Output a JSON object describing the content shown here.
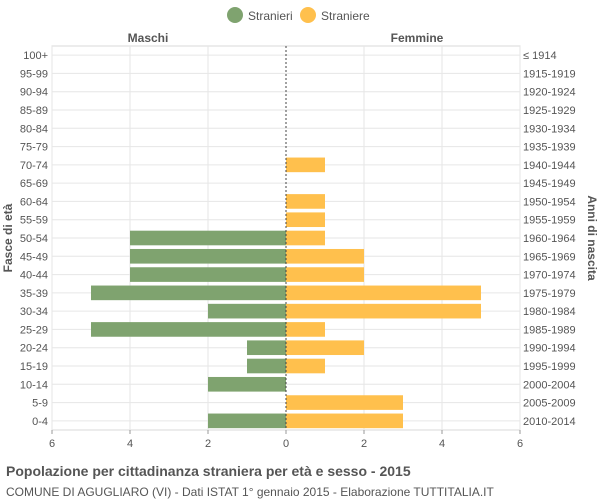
{
  "chart_data": {
    "type": "bar",
    "orientation": "horizontal-population-pyramid",
    "title": "Popolazione per cittadinanza straniera per età e sesso - 2015",
    "subtitle": "COMUNE DI AGUGLIARO (VI) - Dati ISTAT 1° gennaio 2015 - Elaborazione TUTTITALIA.IT",
    "ylabel_left": "Fasce di età",
    "ylabel_right": "Anni di nascita",
    "side_left_label": "Maschi",
    "side_right_label": "Femmine",
    "xlim": [
      -6,
      6
    ],
    "x_ticks": [
      -6,
      -4,
      -2,
      0,
      2,
      4,
      6
    ],
    "x_tick_labels": [
      "6",
      "4",
      "2",
      "0",
      "2",
      "4",
      "6"
    ],
    "grid": true,
    "legend_position": "top-center",
    "categories": [
      "100+",
      "95-99",
      "90-94",
      "85-89",
      "80-84",
      "75-79",
      "70-74",
      "65-69",
      "60-64",
      "55-59",
      "50-54",
      "45-49",
      "40-44",
      "35-39",
      "30-34",
      "25-29",
      "20-24",
      "15-19",
      "10-14",
      "5-9",
      "0-4"
    ],
    "birth_years": [
      "≤ 1914",
      "1915-1919",
      "1920-1924",
      "1925-1929",
      "1930-1934",
      "1935-1939",
      "1940-1944",
      "1945-1949",
      "1950-1954",
      "1955-1959",
      "1960-1964",
      "1965-1969",
      "1970-1974",
      "1975-1979",
      "1980-1984",
      "1985-1989",
      "1990-1994",
      "1995-1999",
      "2000-2004",
      "2005-2009",
      "2010-2014"
    ],
    "series": [
      {
        "name": "Stranieri",
        "side": "left",
        "color": "#7fa36f",
        "values": [
          0,
          0,
          0,
          0,
          0,
          0,
          0,
          0,
          0,
          0,
          4,
          4,
          4,
          5,
          2,
          5,
          1,
          1,
          2,
          0,
          2
        ]
      },
      {
        "name": "Straniere",
        "side": "right",
        "color": "#ffc04d",
        "values": [
          0,
          0,
          0,
          0,
          0,
          0,
          1,
          0,
          1,
          1,
          1,
          2,
          2,
          5,
          5,
          1,
          2,
          1,
          0,
          3,
          3
        ]
      }
    ]
  }
}
